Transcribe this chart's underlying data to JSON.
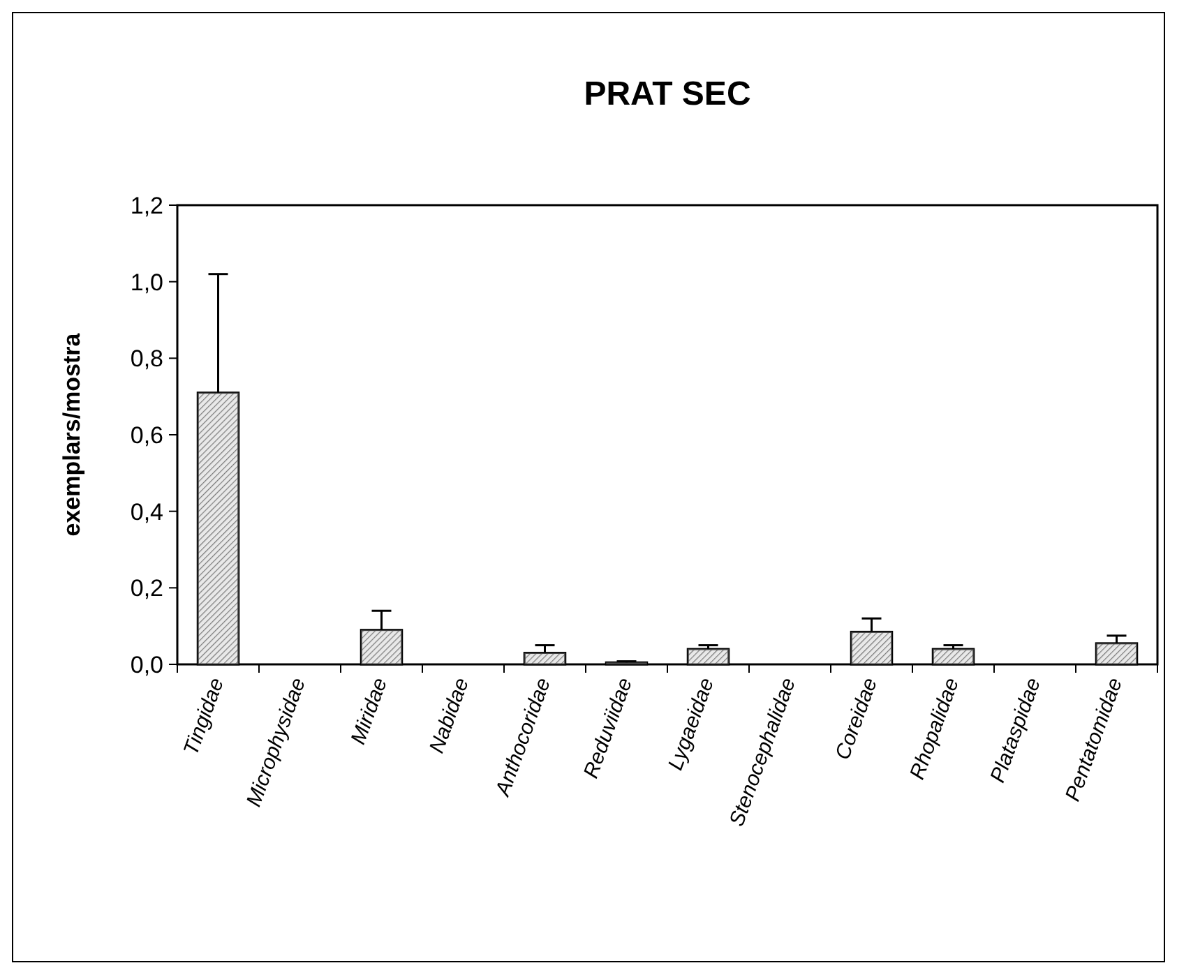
{
  "chart_data": {
    "type": "bar",
    "title": "PRAT SEC",
    "ylabel": "exemplars/mostra",
    "categories": [
      "Tingidae",
      "Microphysidae",
      "Miridae",
      "Nabidae",
      "Anthocoridae",
      "Reduviidae",
      "Lygaeidae",
      "Stenocephalidae",
      "Coreidae",
      "Rhopalidae",
      "Plataspidae",
      "Pentatomidae"
    ],
    "values": [
      0.71,
      0,
      0.09,
      0,
      0.03,
      0.005,
      0.04,
      0,
      0.085,
      0.04,
      0,
      0.055
    ],
    "errors": [
      0.31,
      null,
      0.05,
      null,
      0.02,
      0.003,
      0.01,
      null,
      0.035,
      0.01,
      null,
      0.02
    ],
    "color": "#c0c0c0",
    "ylim": [
      0,
      1.2
    ],
    "yticks": [
      {
        "value": 0,
        "label": "0,0"
      },
      {
        "value": 0.2,
        "label": "0,2"
      },
      {
        "value": 0.4,
        "label": "0,4"
      },
      {
        "value": 0.6,
        "label": "0,6"
      },
      {
        "value": 0.8,
        "label": "0,8"
      },
      {
        "value": 1,
        "label": "1,0"
      },
      {
        "value": 1.2,
        "label": "1,2"
      }
    ],
    "grid": false
  }
}
